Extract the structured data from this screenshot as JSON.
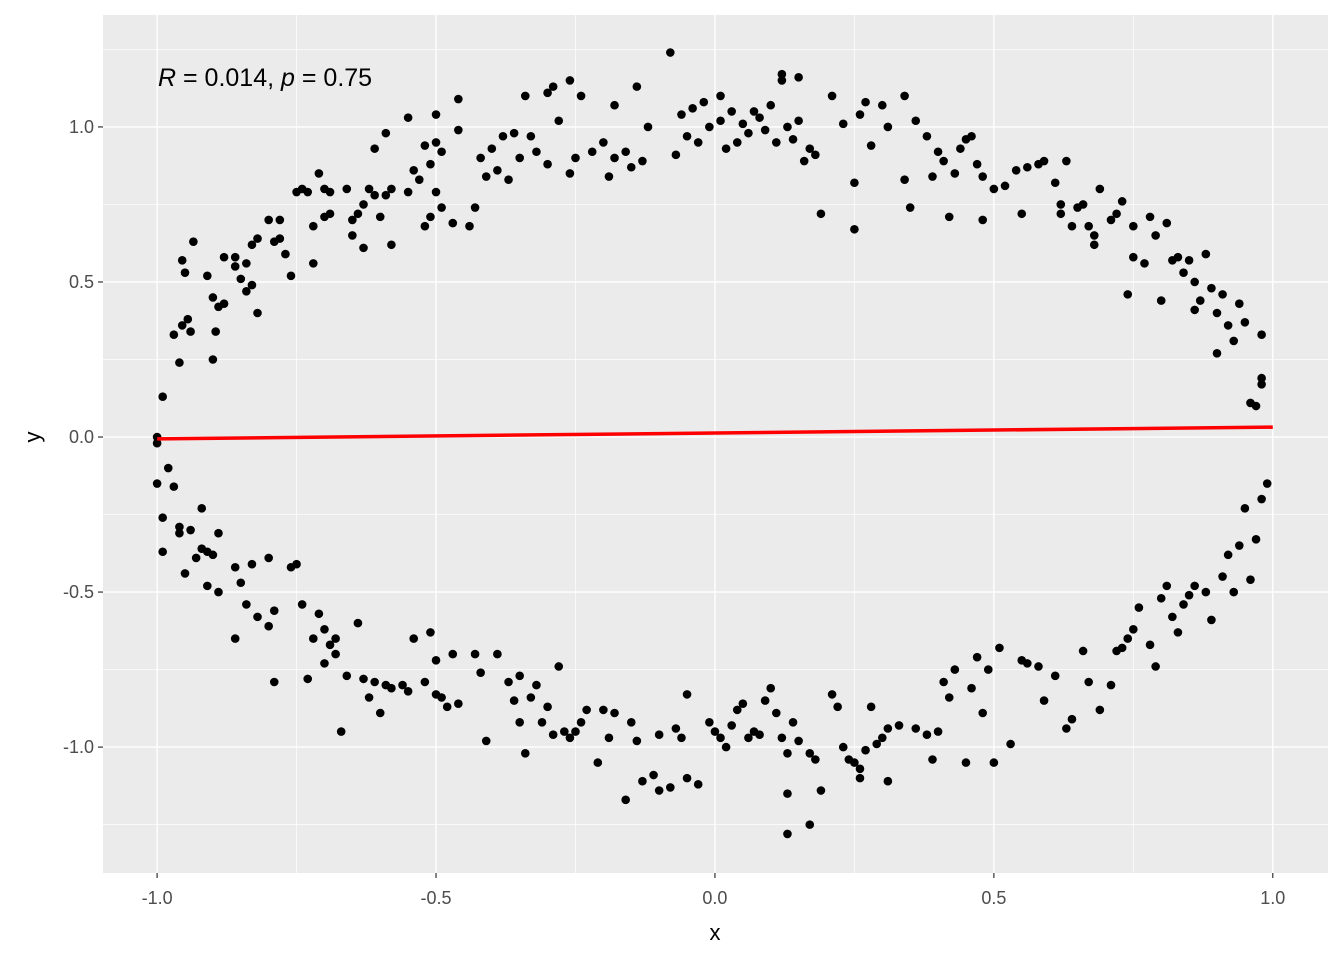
{
  "chart_data": {
    "type": "scatter",
    "xlabel": "x",
    "ylabel": "y",
    "xlim": [
      -1.097,
      1.099
    ],
    "ylim": [
      -1.406,
      1.361
    ],
    "grid": true,
    "x_ticks": [
      -1.0,
      -0.5,
      0.0,
      0.5,
      1.0
    ],
    "y_ticks": [
      -1.0,
      -0.5,
      0.0,
      0.5,
      1.0
    ],
    "x_tick_labels": [
      "-1.0",
      "-0.5",
      "0.0",
      "0.5",
      "1.0"
    ],
    "y_tick_labels": [
      "-1.0",
      "-0.5",
      "0.0",
      "0.5",
      "1.0"
    ],
    "annotation": {
      "r_symbol": "R",
      "r_text": " = 0.014, ",
      "p_symbol": "p",
      "p_text": " = 0.75",
      "R": 0.014,
      "p": 0.75
    },
    "point_color": "#000000",
    "panel_color": "#EBEBEB",
    "regression_line": {
      "color": "#FF0000",
      "x": [
        -1.0,
        1.0
      ],
      "y": [
        -0.006,
        0.032
      ]
    },
    "points": [
      [
        -1.0,
        0.0
      ],
      [
        -0.99,
        0.13
      ],
      [
        -0.97,
        0.33
      ],
      [
        -0.96,
        0.24
      ],
      [
        -0.955,
        0.36
      ],
      [
        -0.955,
        0.57
      ],
      [
        -0.95,
        0.53
      ],
      [
        -0.945,
        0.38
      ],
      [
        -0.94,
        0.34
      ],
      [
        -0.935,
        0.63
      ],
      [
        -0.91,
        0.52
      ],
      [
        -0.9,
        0.25
      ],
      [
        -0.9,
        0.45
      ],
      [
        -0.895,
        0.34
      ],
      [
        -0.89,
        0.42
      ],
      [
        -0.88,
        0.43
      ],
      [
        -0.88,
        0.58
      ],
      [
        -0.86,
        0.55
      ],
      [
        -0.86,
        0.58
      ],
      [
        -0.85,
        0.51
      ],
      [
        -0.84,
        0.56
      ],
      [
        -0.84,
        0.47
      ],
      [
        -0.83,
        0.49
      ],
      [
        -0.83,
        0.62
      ],
      [
        -0.82,
        0.4
      ],
      [
        -0.82,
        0.64
      ],
      [
        -0.8,
        0.7
      ],
      [
        -0.79,
        0.63
      ],
      [
        -0.78,
        0.7
      ],
      [
        -0.78,
        0.64
      ],
      [
        -0.77,
        0.59
      ],
      [
        -0.76,
        0.52
      ],
      [
        -0.75,
        0.79
      ],
      [
        -0.74,
        0.8
      ],
      [
        -0.73,
        0.79
      ],
      [
        -0.72,
        0.56
      ],
      [
        -0.72,
        0.68
      ],
      [
        -0.71,
        0.85
      ],
      [
        -0.7,
        0.8
      ],
      [
        -0.7,
        0.71
      ],
      [
        -0.69,
        0.72
      ],
      [
        -0.69,
        0.79
      ],
      [
        -0.66,
        0.8
      ],
      [
        -0.65,
        0.65
      ],
      [
        -0.65,
        0.7
      ],
      [
        -0.64,
        0.72
      ],
      [
        -0.63,
        0.61
      ],
      [
        -0.63,
        0.75
      ],
      [
        -0.62,
        0.8
      ],
      [
        -0.61,
        0.93
      ],
      [
        -0.61,
        0.78
      ],
      [
        -0.6,
        0.71
      ],
      [
        -0.59,
        0.98
      ],
      [
        -0.59,
        0.78
      ],
      [
        -0.58,
        0.62
      ],
      [
        -0.58,
        0.8
      ],
      [
        -0.55,
        1.03
      ],
      [
        -0.55,
        0.79
      ],
      [
        -0.54,
        0.86
      ],
      [
        -0.53,
        0.83
      ],
      [
        -0.52,
        0.94
      ],
      [
        -0.52,
        0.68
      ],
      [
        -0.51,
        0.71
      ],
      [
        -0.51,
        0.88
      ],
      [
        -0.5,
        1.04
      ],
      [
        -0.5,
        0.95
      ],
      [
        -0.5,
        0.79
      ],
      [
        -0.49,
        0.74
      ],
      [
        -0.49,
        0.92
      ],
      [
        -0.47,
        0.69
      ],
      [
        -0.46,
        1.09
      ],
      [
        -0.46,
        0.99
      ],
      [
        -0.44,
        0.68
      ],
      [
        -0.43,
        0.74
      ],
      [
        -0.42,
        0.9
      ],
      [
        -0.41,
        0.84
      ],
      [
        -0.4,
        0.93
      ],
      [
        -0.39,
        0.86
      ],
      [
        -0.38,
        0.97
      ],
      [
        -0.37,
        0.83
      ],
      [
        -0.36,
        0.98
      ],
      [
        -0.35,
        0.9
      ],
      [
        -0.34,
        1.1
      ],
      [
        -0.33,
        0.97
      ],
      [
        -0.32,
        0.92
      ],
      [
        -0.3,
        1.11
      ],
      [
        -0.3,
        0.88
      ],
      [
        -0.29,
        1.13
      ],
      [
        -0.28,
        1.02
      ],
      [
        -0.26,
        1.15
      ],
      [
        -0.26,
        0.85
      ],
      [
        -0.25,
        0.9
      ],
      [
        -0.24,
        1.1
      ],
      [
        -0.22,
        0.92
      ],
      [
        -0.2,
        0.95
      ],
      [
        -0.19,
        0.84
      ],
      [
        -0.18,
        1.07
      ],
      [
        -0.18,
        0.9
      ],
      [
        -0.16,
        0.92
      ],
      [
        -0.15,
        0.87
      ],
      [
        -0.14,
        1.13
      ],
      [
        -0.13,
        0.89
      ],
      [
        -0.12,
        1.0
      ],
      [
        -0.08,
        1.24
      ],
      [
        -0.07,
        0.91
      ],
      [
        -0.06,
        1.04
      ],
      [
        -0.05,
        0.97
      ],
      [
        -0.04,
        1.06
      ],
      [
        -0.03,
        0.95
      ],
      [
        -0.02,
        1.08
      ],
      [
        -0.01,
        1.0
      ],
      [
        0.01,
        1.1
      ],
      [
        0.01,
        1.02
      ],
      [
        0.02,
        0.93
      ],
      [
        0.03,
        1.05
      ],
      [
        0.04,
        0.95
      ],
      [
        0.05,
        1.01
      ],
      [
        0.06,
        0.98
      ],
      [
        0.07,
        1.05
      ],
      [
        0.08,
        1.03
      ],
      [
        0.09,
        0.99
      ],
      [
        0.1,
        1.07
      ],
      [
        0.11,
        0.95
      ],
      [
        0.12,
        1.17
      ],
      [
        0.12,
        1.15
      ],
      [
        0.13,
        1.0
      ],
      [
        0.14,
        0.96
      ],
      [
        0.15,
        1.02
      ],
      [
        0.15,
        1.16
      ],
      [
        0.16,
        0.89
      ],
      [
        0.17,
        0.93
      ],
      [
        0.18,
        0.91
      ],
      [
        0.19,
        0.72
      ],
      [
        0.21,
        1.1
      ],
      [
        0.23,
        1.01
      ],
      [
        0.25,
        0.82
      ],
      [
        0.25,
        0.67
      ],
      [
        0.26,
        1.04
      ],
      [
        0.27,
        1.08
      ],
      [
        0.28,
        0.94
      ],
      [
        0.3,
        1.07
      ],
      [
        0.31,
        1.0
      ],
      [
        0.34,
        1.1
      ],
      [
        0.34,
        0.83
      ],
      [
        0.35,
        0.74
      ],
      [
        0.36,
        1.02
      ],
      [
        0.38,
        0.97
      ],
      [
        0.39,
        0.84
      ],
      [
        0.4,
        0.92
      ],
      [
        0.41,
        0.89
      ],
      [
        0.42,
        0.71
      ],
      [
        0.43,
        0.85
      ],
      [
        0.44,
        0.93
      ],
      [
        0.45,
        0.96
      ],
      [
        0.46,
        0.97
      ],
      [
        0.47,
        0.88
      ],
      [
        0.48,
        0.7
      ],
      [
        0.48,
        0.84
      ],
      [
        0.5,
        0.8
      ],
      [
        0.52,
        0.81
      ],
      [
        0.54,
        0.86
      ],
      [
        0.55,
        0.72
      ],
      [
        0.56,
        0.87
      ],
      [
        0.58,
        0.88
      ],
      [
        0.59,
        0.89
      ],
      [
        0.61,
        0.82
      ],
      [
        0.62,
        0.75
      ],
      [
        0.62,
        0.72
      ],
      [
        0.63,
        0.89
      ],
      [
        0.64,
        0.68
      ],
      [
        0.65,
        0.74
      ],
      [
        0.66,
        0.75
      ],
      [
        0.67,
        0.68
      ],
      [
        0.68,
        0.62
      ],
      [
        0.68,
        0.65
      ],
      [
        0.69,
        0.8
      ],
      [
        0.71,
        0.7
      ],
      [
        0.72,
        0.72
      ],
      [
        0.73,
        0.76
      ],
      [
        0.74,
        0.46
      ],
      [
        0.75,
        0.68
      ],
      [
        0.75,
        0.58
      ],
      [
        0.77,
        0.56
      ],
      [
        0.78,
        0.71
      ],
      [
        0.79,
        0.65
      ],
      [
        0.8,
        0.44
      ],
      [
        0.81,
        0.69
      ],
      [
        0.82,
        0.57
      ],
      [
        0.83,
        0.58
      ],
      [
        0.84,
        0.53
      ],
      [
        0.85,
        0.57
      ],
      [
        0.86,
        0.5
      ],
      [
        0.86,
        0.41
      ],
      [
        0.87,
        0.44
      ],
      [
        0.88,
        0.59
      ],
      [
        0.89,
        0.48
      ],
      [
        0.9,
        0.27
      ],
      [
        0.9,
        0.4
      ],
      [
        0.91,
        0.46
      ],
      [
        0.92,
        0.36
      ],
      [
        0.93,
        0.31
      ],
      [
        0.94,
        0.43
      ],
      [
        0.95,
        0.37
      ],
      [
        0.96,
        0.11
      ],
      [
        0.97,
        0.1
      ],
      [
        0.98,
        0.33
      ],
      [
        0.98,
        0.19
      ],
      [
        0.98,
        0.17
      ],
      [
        -1.0,
        -0.02
      ],
      [
        -1.0,
        -0.15
      ],
      [
        -0.99,
        -0.26
      ],
      [
        -0.99,
        -0.37
      ],
      [
        -0.98,
        -0.1
      ],
      [
        -0.97,
        -0.16
      ],
      [
        -0.96,
        -0.29
      ],
      [
        -0.96,
        -0.31
      ],
      [
        -0.95,
        -0.44
      ],
      [
        -0.94,
        -0.3
      ],
      [
        -0.93,
        -0.39
      ],
      [
        -0.92,
        -0.23
      ],
      [
        -0.92,
        -0.36
      ],
      [
        -0.91,
        -0.37
      ],
      [
        -0.91,
        -0.48
      ],
      [
        -0.9,
        -0.38
      ],
      [
        -0.89,
        -0.5
      ],
      [
        -0.89,
        -0.31
      ],
      [
        -0.86,
        -0.42
      ],
      [
        -0.86,
        -0.65
      ],
      [
        -0.85,
        -0.47
      ],
      [
        -0.84,
        -0.54
      ],
      [
        -0.83,
        -0.41
      ],
      [
        -0.82,
        -0.58
      ],
      [
        -0.8,
        -0.39
      ],
      [
        -0.8,
        -0.61
      ],
      [
        -0.79,
        -0.56
      ],
      [
        -0.79,
        -0.79
      ],
      [
        -0.76,
        -0.42
      ],
      [
        -0.75,
        -0.41
      ],
      [
        -0.74,
        -0.54
      ],
      [
        -0.73,
        -0.78
      ],
      [
        -0.72,
        -0.65
      ],
      [
        -0.71,
        -0.57
      ],
      [
        -0.7,
        -0.62
      ],
      [
        -0.7,
        -0.73
      ],
      [
        -0.69,
        -0.67
      ],
      [
        -0.68,
        -0.65
      ],
      [
        -0.68,
        -0.7
      ],
      [
        -0.67,
        -0.95
      ],
      [
        -0.66,
        -0.77
      ],
      [
        -0.64,
        -0.6
      ],
      [
        -0.63,
        -0.78
      ],
      [
        -0.62,
        -0.84
      ],
      [
        -0.61,
        -0.79
      ],
      [
        -0.6,
        -0.89
      ],
      [
        -0.59,
        -0.8
      ],
      [
        -0.58,
        -0.81
      ],
      [
        -0.56,
        -0.8
      ],
      [
        -0.55,
        -0.82
      ],
      [
        -0.54,
        -0.65
      ],
      [
        -0.52,
        -0.79
      ],
      [
        -0.51,
        -0.63
      ],
      [
        -0.5,
        -0.72
      ],
      [
        -0.5,
        -0.83
      ],
      [
        -0.49,
        -0.84
      ],
      [
        -0.48,
        -0.87
      ],
      [
        -0.47,
        -0.7
      ],
      [
        -0.46,
        -0.86
      ],
      [
        -0.43,
        -0.7
      ],
      [
        -0.42,
        -0.76
      ],
      [
        -0.41,
        -0.98
      ],
      [
        -0.39,
        -0.7
      ],
      [
        -0.37,
        -0.79
      ],
      [
        -0.36,
        -0.85
      ],
      [
        -0.35,
        -0.77
      ],
      [
        -0.35,
        -0.92
      ],
      [
        -0.34,
        -1.02
      ],
      [
        -0.33,
        -0.84
      ],
      [
        -0.32,
        -0.8
      ],
      [
        -0.31,
        -0.92
      ],
      [
        -0.3,
        -0.87
      ],
      [
        -0.29,
        -0.96
      ],
      [
        -0.28,
        -0.74
      ],
      [
        -0.27,
        -0.95
      ],
      [
        -0.26,
        -0.97
      ],
      [
        -0.25,
        -0.95
      ],
      [
        -0.24,
        -0.92
      ],
      [
        -0.23,
        -0.88
      ],
      [
        -0.21,
        -1.05
      ],
      [
        -0.2,
        -0.88
      ],
      [
        -0.19,
        -0.97
      ],
      [
        -0.18,
        -0.89
      ],
      [
        -0.16,
        -1.17
      ],
      [
        -0.15,
        -0.92
      ],
      [
        -0.14,
        -0.98
      ],
      [
        -0.13,
        -1.11
      ],
      [
        -0.11,
        -1.09
      ],
      [
        -0.1,
        -1.14
      ],
      [
        -0.1,
        -0.96
      ],
      [
        -0.08,
        -1.13
      ],
      [
        -0.07,
        -0.94
      ],
      [
        -0.06,
        -0.97
      ],
      [
        -0.05,
        -0.83
      ],
      [
        -0.05,
        -1.1
      ],
      [
        -0.03,
        -1.12
      ],
      [
        -0.01,
        -0.92
      ],
      [
        0.0,
        -0.95
      ],
      [
        0.01,
        -0.97
      ],
      [
        0.02,
        -1.0
      ],
      [
        0.03,
        -0.93
      ],
      [
        0.04,
        -0.88
      ],
      [
        0.05,
        -0.86
      ],
      [
        0.06,
        -0.97
      ],
      [
        0.07,
        -0.95
      ],
      [
        0.08,
        -0.96
      ],
      [
        0.09,
        -0.85
      ],
      [
        0.1,
        -0.81
      ],
      [
        0.11,
        -0.89
      ],
      [
        0.12,
        -0.97
      ],
      [
        0.13,
        -1.02
      ],
      [
        0.13,
        -1.15
      ],
      [
        0.13,
        -1.28
      ],
      [
        0.14,
        -0.92
      ],
      [
        0.15,
        -0.98
      ],
      [
        0.17,
        -1.25
      ],
      [
        0.17,
        -1.02
      ],
      [
        0.18,
        -1.04
      ],
      [
        0.19,
        -1.14
      ],
      [
        0.21,
        -0.83
      ],
      [
        0.22,
        -0.87
      ],
      [
        0.23,
        -1.0
      ],
      [
        0.24,
        -1.04
      ],
      [
        0.25,
        -1.05
      ],
      [
        0.26,
        -1.07
      ],
      [
        0.26,
        -1.1
      ],
      [
        0.27,
        -1.01
      ],
      [
        0.28,
        -0.87
      ],
      [
        0.29,
        -0.99
      ],
      [
        0.3,
        -0.97
      ],
      [
        0.31,
        -0.94
      ],
      [
        0.31,
        -1.11
      ],
      [
        0.33,
        -0.93
      ],
      [
        0.36,
        -0.94
      ],
      [
        0.38,
        -0.96
      ],
      [
        0.39,
        -1.04
      ],
      [
        0.4,
        -0.95
      ],
      [
        0.41,
        -0.79
      ],
      [
        0.42,
        -0.84
      ],
      [
        0.43,
        -0.75
      ],
      [
        0.45,
        -1.05
      ],
      [
        0.46,
        -0.81
      ],
      [
        0.47,
        -0.71
      ],
      [
        0.48,
        -0.89
      ],
      [
        0.49,
        -0.75
      ],
      [
        0.5,
        -1.05
      ],
      [
        0.51,
        -0.68
      ],
      [
        0.53,
        -0.99
      ],
      [
        0.55,
        -0.72
      ],
      [
        0.56,
        -0.73
      ],
      [
        0.58,
        -0.74
      ],
      [
        0.59,
        -0.85
      ],
      [
        0.61,
        -0.77
      ],
      [
        0.63,
        -0.94
      ],
      [
        0.64,
        -0.91
      ],
      [
        0.66,
        -0.69
      ],
      [
        0.67,
        -0.79
      ],
      [
        0.69,
        -0.88
      ],
      [
        0.71,
        -0.8
      ],
      [
        0.72,
        -0.69
      ],
      [
        0.73,
        -0.68
      ],
      [
        0.74,
        -0.65
      ],
      [
        0.75,
        -0.62
      ],
      [
        0.76,
        -0.55
      ],
      [
        0.78,
        -0.67
      ],
      [
        0.79,
        -0.74
      ],
      [
        0.8,
        -0.52
      ],
      [
        0.81,
        -0.48
      ],
      [
        0.82,
        -0.58
      ],
      [
        0.83,
        -0.63
      ],
      [
        0.84,
        -0.54
      ],
      [
        0.85,
        -0.51
      ],
      [
        0.86,
        -0.48
      ],
      [
        0.88,
        -0.5
      ],
      [
        0.89,
        -0.59
      ],
      [
        0.91,
        -0.45
      ],
      [
        0.92,
        -0.38
      ],
      [
        0.93,
        -0.5
      ],
      [
        0.94,
        -0.35
      ],
      [
        0.95,
        -0.23
      ],
      [
        0.96,
        -0.46
      ],
      [
        0.97,
        -0.33
      ],
      [
        0.98,
        -0.2
      ],
      [
        0.99,
        -0.15
      ]
    ]
  }
}
